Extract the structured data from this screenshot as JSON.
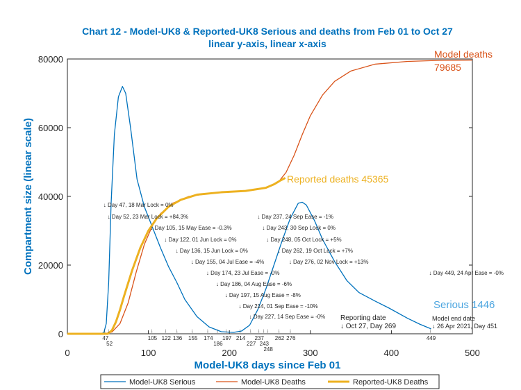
{
  "chart_data": {
    "type": "line",
    "title": "Chart 12 - Model-UK8 & Reported-UK8 Serious and deaths from Feb 01 to Oct 27",
    "subtitle": "linear y-axis, linear x-axis",
    "xlabel": "Model-UK8 days since Feb 01",
    "ylabel": "Compartment size (linear scale)",
    "xlim": [
      0,
      500
    ],
    "ylim": [
      0,
      80000
    ],
    "xticks": [
      0,
      100,
      200,
      300,
      400,
      500
    ],
    "yticks": [
      0,
      20000,
      40000,
      60000,
      80000
    ],
    "grid": false,
    "legend_position": "bottom",
    "series": [
      {
        "name": "Model-UK8 Serious",
        "color": "#0072bd",
        "points": [
          [
            0,
            0
          ],
          [
            40,
            30
          ],
          [
            45,
            300
          ],
          [
            48,
            3000
          ],
          [
            51,
            15000
          ],
          [
            54,
            38000
          ],
          [
            58,
            58000
          ],
          [
            63,
            69000
          ],
          [
            68,
            72000
          ],
          [
            72,
            70000
          ],
          [
            78,
            60000
          ],
          [
            86,
            45000
          ],
          [
            95,
            37000
          ],
          [
            105,
            31000
          ],
          [
            115,
            25000
          ],
          [
            125,
            19500
          ],
          [
            135,
            15000
          ],
          [
            145,
            10000
          ],
          [
            160,
            5000
          ],
          [
            175,
            2000
          ],
          [
            190,
            600
          ],
          [
            205,
            400
          ],
          [
            215,
            800
          ],
          [
            225,
            2500
          ],
          [
            235,
            7000
          ],
          [
            245,
            13000
          ],
          [
            255,
            20000
          ],
          [
            265,
            27000
          ],
          [
            275,
            33500
          ],
          [
            285,
            38000
          ],
          [
            290,
            38300
          ],
          [
            295,
            37500
          ],
          [
            305,
            33000
          ],
          [
            315,
            27500
          ],
          [
            330,
            21000
          ],
          [
            345,
            15500
          ],
          [
            360,
            12000
          ],
          [
            380,
            9500
          ],
          [
            397,
            7500
          ],
          [
            420,
            4500
          ],
          [
            435,
            2800
          ],
          [
            449,
            1446
          ]
        ]
      },
      {
        "name": "Model-UK8 Deaths",
        "color": "#d95319",
        "points": [
          [
            0,
            0
          ],
          [
            45,
            0
          ],
          [
            55,
            500
          ],
          [
            65,
            3000
          ],
          [
            75,
            9000
          ],
          [
            85,
            18000
          ],
          [
            95,
            26000
          ],
          [
            105,
            31500
          ],
          [
            115,
            35000
          ],
          [
            130,
            38000
          ],
          [
            150,
            40000
          ],
          [
            180,
            41000
          ],
          [
            220,
            41500
          ],
          [
            245,
            42500
          ],
          [
            260,
            44000
          ],
          [
            270,
            47000
          ],
          [
            280,
            52000
          ],
          [
            290,
            58000
          ],
          [
            300,
            63500
          ],
          [
            315,
            69500
          ],
          [
            330,
            73500
          ],
          [
            350,
            76500
          ],
          [
            380,
            78500
          ],
          [
            420,
            79300
          ],
          [
            460,
            79600
          ],
          [
            500,
            79685
          ]
        ]
      },
      {
        "name": "Reported-UK8 Deaths",
        "color": "#edb120",
        "points": [
          [
            0,
            0
          ],
          [
            50,
            0
          ],
          [
            55,
            1000
          ],
          [
            60,
            3500
          ],
          [
            65,
            7000
          ],
          [
            70,
            11000
          ],
          [
            80,
            18500
          ],
          [
            90,
            25000
          ],
          [
            100,
            30000
          ],
          [
            110,
            33500
          ],
          [
            125,
            37000
          ],
          [
            140,
            39000
          ],
          [
            160,
            40500
          ],
          [
            190,
            41200
          ],
          [
            220,
            41600
          ],
          [
            245,
            42500
          ],
          [
            255,
            43500
          ],
          [
            262,
            44500
          ],
          [
            269,
            45365
          ]
        ]
      }
    ],
    "annotations": [
      {
        "day": 47,
        "text": "↓ Day 47, 18 Mar Lock = 0%"
      },
      {
        "day": 52,
        "text": "↓ Day 52, 23 Mar Lock = +84.3%"
      },
      {
        "day": 105,
        "text": "↓ Day 105, 15 May Ease = -0.3%"
      },
      {
        "day": 122,
        "text": "↓ Day 122, 01 Jun Lock = 0%"
      },
      {
        "day": 136,
        "text": "↓ Day 136, 15 Jun Lock = 0%"
      },
      {
        "day": 155,
        "text": "↓ Day 155, 04 Jul Ease = -4%"
      },
      {
        "day": 174,
        "text": "↓ Day 174, 23 Jul Ease = -0%"
      },
      {
        "day": 186,
        "text": "↓ Day 186, 04 Aug Ease = -6%"
      },
      {
        "day": 197,
        "text": "↓ Day 197, 15 Aug Ease = -8%"
      },
      {
        "day": 214,
        "text": "↓ Day 214, 01 Sep Ease = -10%"
      },
      {
        "day": 227,
        "text": "↓ Day 227, 14 Sep Ease = -0%"
      },
      {
        "day": 237,
        "text": "↓ Day 237, 24 Sep Ease = -1%"
      },
      {
        "day": 243,
        "text": "↓ Day 243, 30 Sep Lock = 0%"
      },
      {
        "day": 248,
        "text": "↓ Day 248, 05 Oct Lock = +5%"
      },
      {
        "day": 262,
        "text": "↓ Day 262, 19 Oct Lock = +7%"
      },
      {
        "day": 276,
        "text": "↓ Day 276, 02 Nov Lock = +13%"
      },
      {
        "day": 449,
        "text": "↓ Day 449, 24 Apr Ease = -0%"
      }
    ],
    "day_ticks": [
      47,
      52,
      105,
      122,
      136,
      155,
      174,
      186,
      197,
      214,
      227,
      237,
      243,
      248,
      262,
      276,
      449
    ],
    "labels": {
      "model_deaths": "Model deaths",
      "model_deaths_value": "79685",
      "reported_deaths": "Reported deaths 45365",
      "serious_end": "Serious 1446",
      "reporting_date": "Reporting date",
      "reporting_day": "↓ Oct 27, Day 269",
      "model_end": "Model end date",
      "model_end_day": "↓ 26 Apr 2021, Day 451"
    }
  }
}
